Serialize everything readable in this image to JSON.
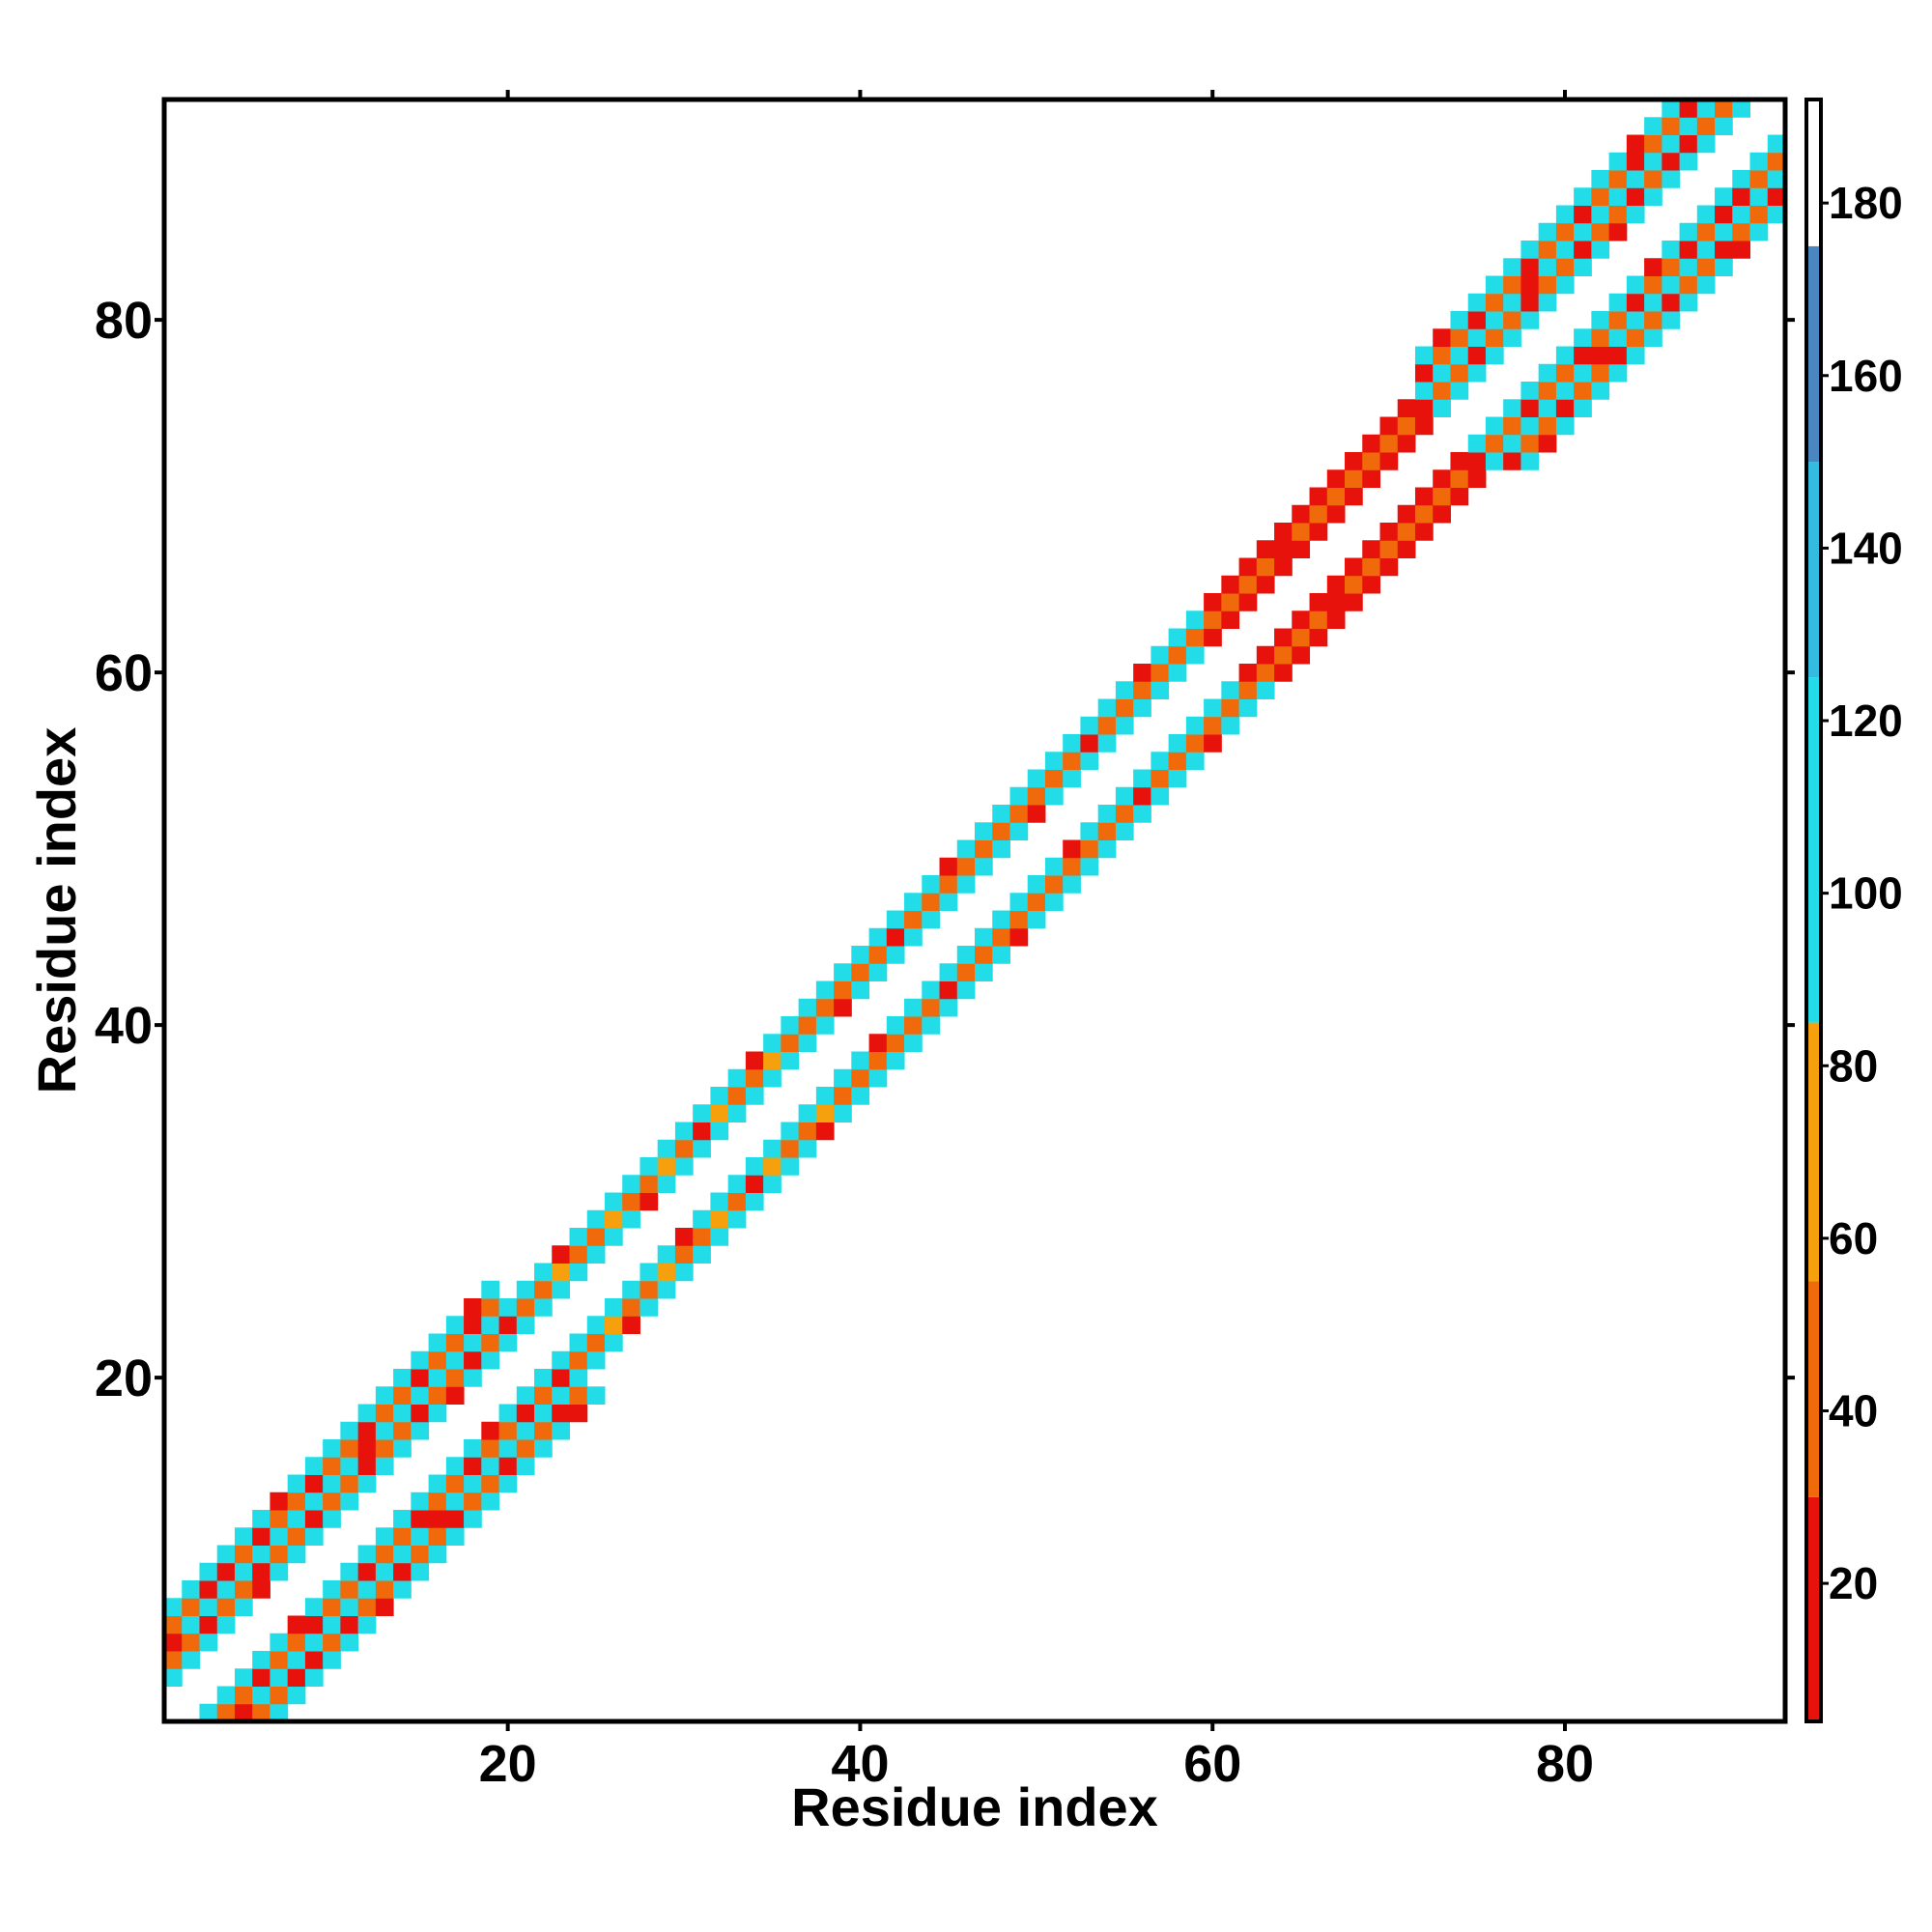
{
  "chart_data": {
    "type": "heatmap",
    "title": "",
    "xlabel": "Residue index",
    "ylabel": "Residue index",
    "xlim": [
      0.5,
      92.5
    ],
    "ylim": [
      0.5,
      92.5
    ],
    "x_ticks": [
      20,
      40,
      60,
      80
    ],
    "y_ticks": [
      20,
      40,
      60,
      80
    ],
    "colorbar": {
      "range": [
        4,
        192
      ],
      "ticks": [
        20,
        40,
        60,
        80,
        100,
        120,
        140,
        160,
        180
      ],
      "segments": [
        {
          "min": 4,
          "max": 30,
          "color": "#e8120c"
        },
        {
          "min": 30,
          "max": 55,
          "color": "#f06a0c"
        },
        {
          "min": 55,
          "max": 85,
          "color": "#f5a00c"
        },
        {
          "min": 85,
          "max": 125,
          "color": "#22dde8"
        },
        {
          "min": 125,
          "max": 150,
          "color": "#33bbe0"
        },
        {
          "min": 150,
          "max": 175,
          "color": "#4a86c0"
        },
        {
          "min": 175,
          "max": 192,
          "color": "#ffffff"
        }
      ]
    },
    "description_ranges": [
      {
        "start": 1,
        "end": 19,
        "minOffset": 2,
        "maxOffset": 6,
        "base": 45,
        "amp": 50
      },
      {
        "start": 20,
        "end": 36,
        "minOffset": 2,
        "maxOffset": 4,
        "base": 60,
        "amp": 35
      },
      {
        "start": 37,
        "end": 59,
        "minOffset": 2,
        "maxOffset": 4,
        "base": 50,
        "amp": 45
      },
      {
        "start": 60,
        "end": 71,
        "minOffset": 2,
        "maxOffset": 4,
        "base": 50,
        "amp": -25
      },
      {
        "start": 72,
        "end": 92,
        "minOffset": 2,
        "maxOffset": 6,
        "base": 45,
        "amp": 50
      }
    ]
  }
}
